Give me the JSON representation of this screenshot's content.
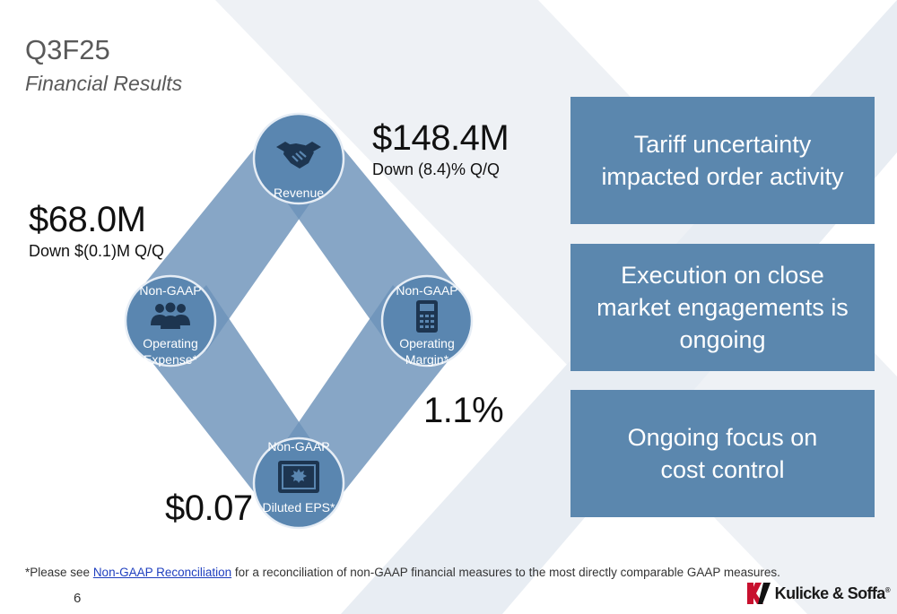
{
  "slide": {
    "title": "Q3F25",
    "subtitle": "Financial Results",
    "page_number": "6"
  },
  "nodes": {
    "revenue": {
      "label": "Revenue",
      "icon": "handshake-icon"
    },
    "opex": {
      "top_label": "Non-GAAP",
      "label_line1": "Operating",
      "label_line2": "Expense*",
      "icon": "people-icon"
    },
    "margin": {
      "top_label": "Non-GAAP",
      "label_line1": "Operating",
      "label_line2": "Margin*",
      "icon": "calculator-icon"
    },
    "eps": {
      "top_label": "Non-GAAP",
      "label": "Diluted EPS*",
      "icon": "certificate-icon"
    }
  },
  "metrics": {
    "revenue": {
      "value": "$148.4M",
      "change": "Down (8.4)% Q/Q"
    },
    "opex": {
      "value": "$68.0M",
      "change": "Down $(0.1)M Q/Q"
    },
    "margin": {
      "value": "1.1%"
    },
    "eps": {
      "value": "$0.07"
    }
  },
  "highlights": [
    {
      "text": "Tariff uncertainty impacted order activity"
    },
    {
      "text": "Execution on close market engagements is ongoing"
    },
    {
      "text": "Ongoing focus on cost control"
    }
  ],
  "footnote": {
    "prefix": "*Please see ",
    "link_text": "Non-GAAP Reconciliation",
    "suffix": " for a reconciliation of non-GAAP financial measures to the most directly comparable GAAP measures."
  },
  "logo": {
    "text": "Kulicke & Soffa",
    "mark": "®"
  },
  "colors": {
    "box_fill": "#5b87ae",
    "band_fill": "#6d93ba",
    "node_fill": "#5a86b0"
  }
}
